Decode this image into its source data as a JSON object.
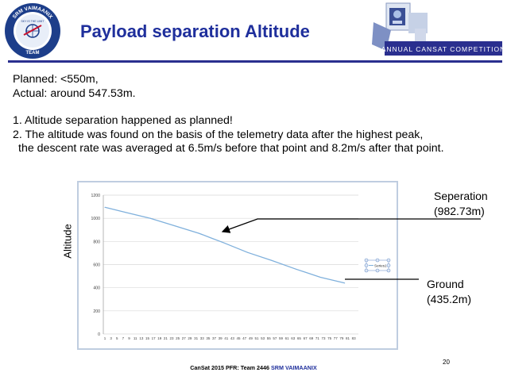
{
  "header": {
    "title": "Payload separation Altitude",
    "left_logo_text": [
      "SRM VAIMAANIX",
      "SKY IS THE LIMIT",
      "TEAM"
    ],
    "right_logo_text": "ANNUAL CANSAT COMPETITION"
  },
  "body": {
    "line1": "Planned: <550m,",
    "line2": "Actual: around 547.53m.",
    "line3": "1. Altitude separation happened as planned!",
    "line4": "2. The altitude was found on the basis of the telemetry data after the highest peak,",
    "line5": "the descent rate was averaged at 6.5m/s before that point and 8.2m/s after that point."
  },
  "annotations": {
    "separation_label": "Seperation",
    "separation_value": "(982.73m)",
    "ground_label": "Ground",
    "ground_value": "(435.2m)"
  },
  "footer": {
    "prefix": "CanSat 2015 PFR:   Team 2446 ",
    "team": "SRM VAIMAANIX",
    "page": "20"
  },
  "colors": {
    "title": "#1f2f9c",
    "line": "#7fb0dc",
    "grid": "#d9d9d9"
  },
  "chart_data": {
    "type": "line",
    "title": "",
    "xlabel": "",
    "ylabel": "Altitude",
    "ylim": [
      0,
      1200
    ],
    "yticks": [
      "0",
      "200",
      "400",
      "600",
      "800",
      "1000",
      "1200"
    ],
    "xticks": [
      "1",
      "3",
      "5",
      "7",
      "9",
      "11",
      "13",
      "15",
      "17",
      "19",
      "21",
      "23",
      "25",
      "27",
      "29",
      "31",
      "33",
      "35",
      "37",
      "39",
      "41",
      "43",
      "45",
      "47",
      "49",
      "51",
      "53",
      "55",
      "57",
      "59",
      "61",
      "63",
      "65",
      "67",
      "69",
      "71",
      "73",
      "75",
      "77",
      "79",
      "81",
      "83"
    ],
    "legend": "Series1",
    "series": [
      {
        "name": "Series1",
        "x": [
          1,
          8,
          16,
          24,
          32,
          36,
          40,
          48,
          56,
          64,
          72,
          80
        ],
        "values": [
          1095,
          1050,
          1000,
          935,
          870,
          830,
          790,
          705,
          635,
          560,
          490,
          440
        ]
      }
    ]
  }
}
